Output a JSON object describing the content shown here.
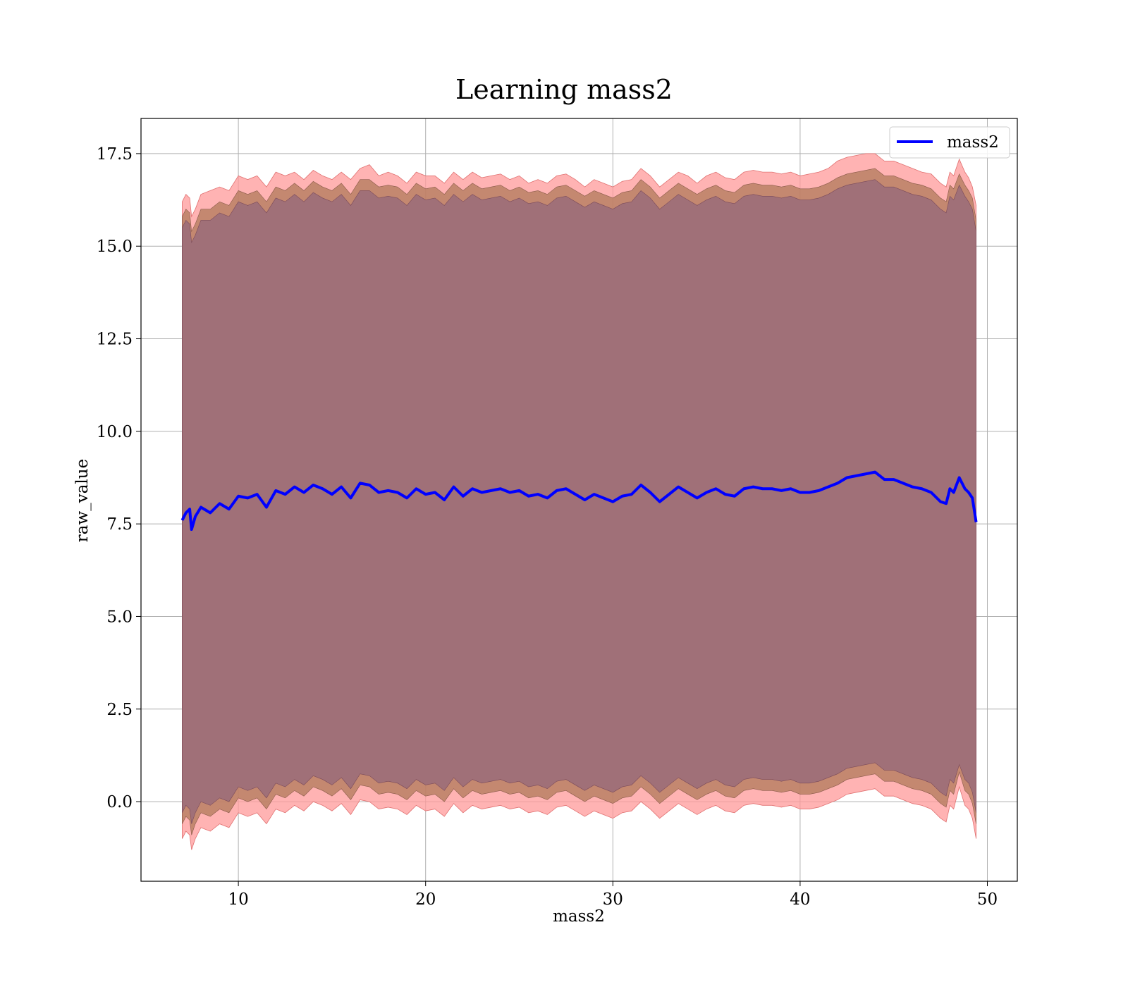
{
  "chart_data": {
    "type": "line",
    "title": "Learning mass2",
    "xlabel": "mass2",
    "ylabel": "raw_value",
    "xlim": [
      4.8,
      51.6
    ],
    "ylim": [
      -2.15,
      18.45
    ],
    "xticks": [
      10,
      20,
      30,
      40,
      50
    ],
    "xtick_labels": [
      "10",
      "20",
      "30",
      "40",
      "50"
    ],
    "yticks": [
      0.0,
      2.5,
      5.0,
      7.5,
      10.0,
      12.5,
      15.0,
      17.5
    ],
    "ytick_labels": [
      "0.0",
      "2.5",
      "5.0",
      "7.5",
      "10.0",
      "12.5",
      "15.0",
      "17.5"
    ],
    "grid": true,
    "legend": {
      "position": "top-right",
      "entries": [
        "mass2"
      ]
    },
    "colors": {
      "mean_line": "#0000ff",
      "outer_band": "#ff9999",
      "inner_band": "#8b5a5a",
      "core_band": "#7a3a4a"
    },
    "series": [
      {
        "name": "mass2",
        "x": [
          7.0,
          7.2,
          7.4,
          7.5,
          7.7,
          8.0,
          8.5,
          9.0,
          9.5,
          10.0,
          10.5,
          11.0,
          11.5,
          12.0,
          12.5,
          13.0,
          13.5,
          14.0,
          14.5,
          15.0,
          15.5,
          16.0,
          16.5,
          17.0,
          17.5,
          18.0,
          18.5,
          19.0,
          19.5,
          20.0,
          20.5,
          21.0,
          21.5,
          22.0,
          22.5,
          23.0,
          23.5,
          24.0,
          24.5,
          25.0,
          25.5,
          26.0,
          26.5,
          27.0,
          27.5,
          28.0,
          28.5,
          29.0,
          29.5,
          30.0,
          30.5,
          31.0,
          31.5,
          32.0,
          32.5,
          33.0,
          33.5,
          34.0,
          34.5,
          35.0,
          35.5,
          36.0,
          36.5,
          37.0,
          37.5,
          38.0,
          38.5,
          39.0,
          39.5,
          40.0,
          40.5,
          41.0,
          41.5,
          42.0,
          42.5,
          43.0,
          43.5,
          44.0,
          44.5,
          45.0,
          45.5,
          46.0,
          46.5,
          47.0,
          47.5,
          47.8,
          48.0,
          48.2,
          48.5,
          48.8,
          49.0,
          49.2,
          49.4
        ],
        "mean": [
          7.6,
          7.8,
          7.9,
          7.35,
          7.7,
          7.95,
          7.8,
          8.05,
          7.9,
          8.25,
          8.2,
          8.3,
          7.95,
          8.4,
          8.3,
          8.5,
          8.35,
          8.55,
          8.45,
          8.3,
          8.5,
          8.2,
          8.6,
          8.55,
          8.35,
          8.4,
          8.35,
          8.2,
          8.45,
          8.3,
          8.35,
          8.15,
          8.5,
          8.25,
          8.45,
          8.35,
          8.4,
          8.45,
          8.35,
          8.4,
          8.25,
          8.3,
          8.2,
          8.4,
          8.45,
          8.3,
          8.15,
          8.3,
          8.2,
          8.1,
          8.25,
          8.3,
          8.55,
          8.35,
          8.1,
          8.3,
          8.5,
          8.35,
          8.2,
          8.35,
          8.45,
          8.3,
          8.25,
          8.45,
          8.5,
          8.45,
          8.45,
          8.4,
          8.45,
          8.35,
          8.35,
          8.4,
          8.5,
          8.6,
          8.75,
          8.8,
          8.85,
          8.9,
          8.7,
          8.7,
          8.6,
          8.5,
          8.45,
          8.35,
          8.1,
          8.05,
          8.45,
          8.35,
          8.75,
          8.45,
          8.35,
          8.2,
          7.55
        ],
        "band_outer_upper": [
          16.2,
          16.4,
          16.3,
          15.8,
          16.0,
          16.4,
          16.5,
          16.6,
          16.5,
          16.9,
          16.8,
          16.9,
          16.6,
          17.0,
          16.9,
          17.0,
          16.8,
          17.05,
          16.9,
          16.8,
          17.0,
          16.8,
          17.1,
          17.2,
          16.9,
          17.0,
          16.9,
          16.7,
          17.0,
          16.9,
          16.9,
          16.7,
          17.0,
          16.8,
          17.0,
          16.85,
          16.9,
          16.95,
          16.8,
          16.9,
          16.7,
          16.8,
          16.7,
          16.9,
          16.95,
          16.8,
          16.6,
          16.8,
          16.7,
          16.6,
          16.75,
          16.8,
          17.1,
          16.9,
          16.6,
          16.8,
          17.0,
          16.9,
          16.7,
          16.9,
          17.0,
          16.85,
          16.8,
          17.0,
          17.05,
          17.0,
          17.0,
          16.95,
          17.0,
          16.9,
          16.95,
          17.0,
          17.1,
          17.3,
          17.4,
          17.45,
          17.5,
          17.5,
          17.3,
          17.3,
          17.2,
          17.1,
          17.0,
          16.95,
          16.7,
          16.6,
          17.0,
          16.9,
          17.35,
          17.0,
          16.85,
          16.6,
          16.1
        ],
        "band_outer_lower": [
          -1.0,
          -0.8,
          -0.9,
          -1.3,
          -1.0,
          -0.7,
          -0.8,
          -0.6,
          -0.7,
          -0.3,
          -0.4,
          -0.3,
          -0.6,
          -0.2,
          -0.3,
          -0.1,
          -0.25,
          0.0,
          -0.1,
          -0.25,
          -0.05,
          -0.35,
          0.05,
          0.0,
          -0.2,
          -0.15,
          -0.2,
          -0.35,
          -0.1,
          -0.25,
          -0.2,
          -0.4,
          -0.05,
          -0.3,
          -0.1,
          -0.2,
          -0.15,
          -0.1,
          -0.2,
          -0.15,
          -0.3,
          -0.25,
          -0.35,
          -0.15,
          -0.1,
          -0.25,
          -0.4,
          -0.25,
          -0.35,
          -0.45,
          -0.3,
          -0.25,
          0.0,
          -0.2,
          -0.45,
          -0.25,
          -0.05,
          -0.2,
          -0.35,
          -0.2,
          -0.1,
          -0.25,
          -0.3,
          -0.1,
          -0.05,
          -0.1,
          -0.1,
          -0.15,
          -0.1,
          -0.2,
          -0.2,
          -0.15,
          -0.05,
          0.05,
          0.2,
          0.25,
          0.3,
          0.35,
          0.15,
          0.15,
          0.05,
          -0.05,
          -0.1,
          -0.2,
          -0.45,
          -0.55,
          -0.1,
          -0.2,
          0.4,
          -0.1,
          -0.2,
          -0.45,
          -1.0
        ],
        "band_inner_upper": [
          15.8,
          16.0,
          15.9,
          15.4,
          15.6,
          16.0,
          16.0,
          16.2,
          16.1,
          16.5,
          16.4,
          16.5,
          16.2,
          16.6,
          16.5,
          16.7,
          16.5,
          16.75,
          16.6,
          16.5,
          16.7,
          16.4,
          16.8,
          16.8,
          16.6,
          16.65,
          16.6,
          16.4,
          16.7,
          16.55,
          16.6,
          16.4,
          16.7,
          16.5,
          16.7,
          16.55,
          16.6,
          16.65,
          16.5,
          16.6,
          16.45,
          16.5,
          16.4,
          16.6,
          16.65,
          16.5,
          16.35,
          16.5,
          16.4,
          16.3,
          16.45,
          16.5,
          16.8,
          16.6,
          16.3,
          16.5,
          16.7,
          16.55,
          16.4,
          16.55,
          16.65,
          16.5,
          16.45,
          16.65,
          16.7,
          16.65,
          16.65,
          16.6,
          16.65,
          16.55,
          16.55,
          16.6,
          16.7,
          16.85,
          16.95,
          17.0,
          17.05,
          17.1,
          16.9,
          16.9,
          16.8,
          16.7,
          16.65,
          16.55,
          16.3,
          16.2,
          16.65,
          16.55,
          16.95,
          16.65,
          16.5,
          16.3,
          15.7
        ],
        "band_inner_lower": [
          -0.6,
          -0.4,
          -0.5,
          -0.9,
          -0.6,
          -0.3,
          -0.4,
          -0.2,
          -0.3,
          0.1,
          0.0,
          0.1,
          -0.2,
          0.2,
          0.1,
          0.3,
          0.15,
          0.4,
          0.3,
          0.15,
          0.35,
          0.05,
          0.45,
          0.4,
          0.2,
          0.25,
          0.2,
          0.05,
          0.3,
          0.15,
          0.2,
          0.0,
          0.35,
          0.1,
          0.3,
          0.2,
          0.25,
          0.3,
          0.2,
          0.25,
          0.1,
          0.15,
          0.05,
          0.25,
          0.3,
          0.15,
          0.0,
          0.15,
          0.05,
          -0.05,
          0.1,
          0.15,
          0.4,
          0.2,
          -0.05,
          0.15,
          0.35,
          0.2,
          0.05,
          0.2,
          0.3,
          0.15,
          0.1,
          0.3,
          0.35,
          0.3,
          0.3,
          0.25,
          0.3,
          0.2,
          0.2,
          0.25,
          0.35,
          0.45,
          0.6,
          0.65,
          0.7,
          0.75,
          0.55,
          0.55,
          0.45,
          0.35,
          0.3,
          0.2,
          -0.05,
          -0.15,
          0.3,
          0.2,
          0.8,
          0.3,
          0.2,
          -0.05,
          -0.6
        ],
        "band_core_upper": [
          15.5,
          15.7,
          15.6,
          15.1,
          15.3,
          15.7,
          15.7,
          15.9,
          15.8,
          16.2,
          16.1,
          16.2,
          15.9,
          16.3,
          16.2,
          16.4,
          16.2,
          16.45,
          16.3,
          16.2,
          16.4,
          16.1,
          16.5,
          16.5,
          16.3,
          16.35,
          16.3,
          16.1,
          16.4,
          16.25,
          16.3,
          16.1,
          16.4,
          16.2,
          16.4,
          16.25,
          16.3,
          16.35,
          16.2,
          16.3,
          16.15,
          16.2,
          16.1,
          16.3,
          16.35,
          16.2,
          16.05,
          16.2,
          16.1,
          16.0,
          16.15,
          16.2,
          16.5,
          16.3,
          16.0,
          16.2,
          16.4,
          16.25,
          16.1,
          16.25,
          16.35,
          16.2,
          16.15,
          16.35,
          16.4,
          16.35,
          16.35,
          16.3,
          16.35,
          16.25,
          16.25,
          16.3,
          16.4,
          16.55,
          16.65,
          16.7,
          16.75,
          16.8,
          16.6,
          16.6,
          16.5,
          16.4,
          16.35,
          16.25,
          16.0,
          15.9,
          16.35,
          16.25,
          16.65,
          16.35,
          16.2,
          16.0,
          15.4
        ],
        "band_core_lower": [
          -0.3,
          -0.1,
          -0.2,
          -0.6,
          -0.3,
          0.0,
          -0.1,
          0.1,
          0.0,
          0.4,
          0.3,
          0.4,
          0.1,
          0.5,
          0.4,
          0.6,
          0.45,
          0.7,
          0.6,
          0.45,
          0.65,
          0.35,
          0.75,
          0.7,
          0.5,
          0.55,
          0.5,
          0.35,
          0.6,
          0.45,
          0.5,
          0.3,
          0.65,
          0.4,
          0.6,
          0.5,
          0.55,
          0.6,
          0.5,
          0.55,
          0.4,
          0.45,
          0.35,
          0.55,
          0.6,
          0.45,
          0.3,
          0.45,
          0.35,
          0.25,
          0.4,
          0.45,
          0.7,
          0.5,
          0.25,
          0.45,
          0.65,
          0.5,
          0.35,
          0.5,
          0.6,
          0.45,
          0.4,
          0.6,
          0.65,
          0.6,
          0.6,
          0.55,
          0.6,
          0.5,
          0.5,
          0.55,
          0.65,
          0.75,
          0.9,
          0.95,
          1.0,
          1.05,
          0.85,
          0.85,
          0.75,
          0.65,
          0.6,
          0.5,
          0.25,
          0.15,
          0.6,
          0.5,
          1.0,
          0.6,
          0.5,
          0.25,
          -0.3
        ]
      }
    ]
  }
}
